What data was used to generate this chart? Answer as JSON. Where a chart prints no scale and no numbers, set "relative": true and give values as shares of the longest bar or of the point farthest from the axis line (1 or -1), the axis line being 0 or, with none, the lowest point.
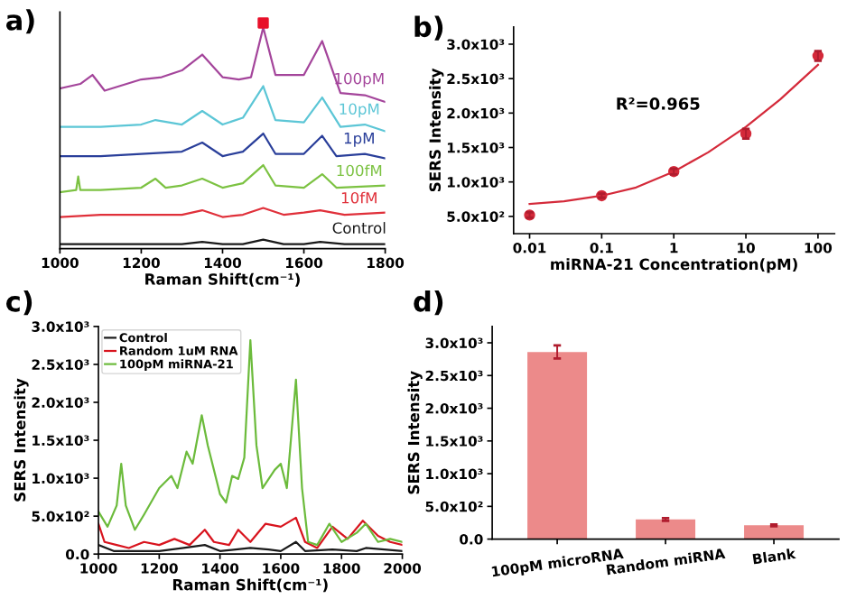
{
  "chart_data": [
    {
      "type": "line",
      "title": "a)",
      "xlabel": "Raman Shift(cm⁻¹)",
      "relative": true,
      "legend": false,
      "tick_labels": "x",
      "xlim": [
        1000,
        1800
      ],
      "xticks": [
        1000,
        1200,
        1400,
        1600,
        1800
      ],
      "series": [
        {
          "name": "Control",
          "color": "#1a1a1a",
          "x": [
            1000,
            1100,
            1200,
            1300,
            1350,
            1400,
            1450,
            1500,
            1550,
            1600,
            1640,
            1700,
            1800
          ],
          "values": [
            0.02,
            0.02,
            0.02,
            0.02,
            0.03,
            0.02,
            0.02,
            0.04,
            0.02,
            0.02,
            0.03,
            0.02,
            0.02
          ]
        },
        {
          "name": "10fM",
          "color": "#e0303a",
          "x": [
            1000,
            1100,
            1200,
            1300,
            1350,
            1400,
            1450,
            1500,
            1550,
            1600,
            1640,
            1700,
            1800
          ],
          "values": [
            0.14,
            0.15,
            0.15,
            0.15,
            0.17,
            0.14,
            0.15,
            0.18,
            0.15,
            0.16,
            0.17,
            0.15,
            0.16
          ]
        },
        {
          "name": "100fM",
          "color": "#7cc242",
          "x": [
            1000,
            1040,
            1045,
            1050,
            1100,
            1200,
            1235,
            1260,
            1300,
            1350,
            1400,
            1450,
            1500,
            1530,
            1600,
            1645,
            1680,
            1800
          ],
          "values": [
            0.25,
            0.26,
            0.32,
            0.26,
            0.26,
            0.27,
            0.31,
            0.27,
            0.28,
            0.31,
            0.27,
            0.29,
            0.37,
            0.28,
            0.27,
            0.33,
            0.27,
            0.28
          ]
        },
        {
          "name": "1pM",
          "color": "#2a3f9a",
          "x": [
            1000,
            1100,
            1200,
            1300,
            1350,
            1400,
            1450,
            1500,
            1530,
            1600,
            1645,
            1680,
            1750,
            1800
          ],
          "values": [
            0.41,
            0.41,
            0.42,
            0.43,
            0.47,
            0.41,
            0.43,
            0.51,
            0.42,
            0.42,
            0.5,
            0.41,
            0.42,
            0.4
          ]
        },
        {
          "name": "10pM",
          "color": "#5cc6d6",
          "x": [
            1000,
            1100,
            1200,
            1235,
            1300,
            1350,
            1400,
            1450,
            1500,
            1530,
            1600,
            1645,
            1690,
            1750,
            1800
          ],
          "values": [
            0.54,
            0.54,
            0.55,
            0.57,
            0.55,
            0.61,
            0.55,
            0.58,
            0.72,
            0.57,
            0.56,
            0.67,
            0.54,
            0.55,
            0.52
          ]
        },
        {
          "name": "100pM",
          "color": "#a4459b",
          "x": [
            1000,
            1050,
            1080,
            1110,
            1200,
            1250,
            1300,
            1350,
            1400,
            1440,
            1470,
            1500,
            1530,
            1600,
            1645,
            1690,
            1750,
            1800
          ],
          "values": [
            0.71,
            0.73,
            0.77,
            0.7,
            0.75,
            0.76,
            0.79,
            0.86,
            0.76,
            0.75,
            0.76,
            0.98,
            0.77,
            0.77,
            0.92,
            0.69,
            0.68,
            0.65
          ]
        },
        {
          "type": "scatter",
          "marker": "square",
          "color": "#e8102a",
          "x": [
            1500
          ],
          "values": [
            1.0
          ]
        }
      ]
    },
    {
      "type": "scatter",
      "title": "b)",
      "xlabel": "miRNA-21 Concentration(pM)",
      "ylabel": "SERS Intensity",
      "log": "x",
      "legend": false,
      "xlim": [
        0.006,
        170
      ],
      "xticks": [
        0.01,
        0.1,
        1,
        10,
        100
      ],
      "ylim": [
        250,
        3250
      ],
      "yticks": [
        {
          "value": 500,
          "label": "5.0x10²"
        },
        {
          "value": 1000,
          "label": "1.0x10³"
        },
        {
          "value": 1500,
          "label": "1.5x10³"
        },
        {
          "value": 2000,
          "label": "2.0x10³"
        },
        {
          "value": 2500,
          "label": "2.5x10³"
        },
        {
          "value": 3000,
          "label": "3.0x10³"
        }
      ],
      "annotations": [
        "R²=0.965"
      ],
      "series": [
        {
          "color": "#d42a3a",
          "marker": "circle",
          "x": [
            0.01,
            0.1,
            1,
            10,
            100
          ],
          "values": [
            520,
            800,
            1150,
            1700,
            2830
          ],
          "errors": [
            40,
            30,
            40,
            70,
            70
          ]
        },
        {
          "type": "line",
          "color": "#d42a3a",
          "x": [
            0.01,
            0.03,
            0.1,
            0.3,
            1,
            3,
            10,
            30,
            100
          ],
          "values": [
            680,
            720,
            800,
            920,
            1150,
            1430,
            1800,
            2200,
            2700
          ]
        }
      ]
    },
    {
      "type": "line",
      "title": "c)",
      "xlabel": "Raman Shift(cm⁻¹)",
      "ylabel": "SERS Intensity",
      "legend": "top left",
      "xlim": [
        1000,
        2000
      ],
      "xticks": [
        1000,
        1200,
        1400,
        1600,
        1800,
        2000
      ],
      "ylim": [
        0,
        3000
      ],
      "yticks": [
        {
          "value": 0,
          "label": "0.0"
        },
        {
          "value": 500,
          "label": "5.0x10²"
        },
        {
          "value": 1000,
          "label": "1.0x10³"
        },
        {
          "value": 1500,
          "label": "1.5x10³"
        },
        {
          "value": 2000,
          "label": "2.0x10³"
        },
        {
          "value": 2500,
          "label": "2.5x10³"
        },
        {
          "value": 3000,
          "label": "3.0x10³"
        }
      ],
      "series": [
        {
          "name": "Control",
          "color": "#1a1a1a",
          "x": [
            1000,
            1050,
            1100,
            1200,
            1280,
            1350,
            1400,
            1500,
            1560,
            1600,
            1650,
            1680,
            1770,
            1850,
            1880,
            2000
          ],
          "values": [
            120,
            40,
            40,
            40,
            80,
            120,
            40,
            80,
            60,
            40,
            160,
            40,
            60,
            40,
            80,
            40
          ]
        },
        {
          "name": "Random 1uM RNA",
          "color": "#d8141e",
          "x": [
            1000,
            1020,
            1060,
            1100,
            1150,
            1200,
            1250,
            1300,
            1350,
            1380,
            1430,
            1460,
            1500,
            1550,
            1600,
            1650,
            1680,
            1720,
            1770,
            1820,
            1870,
            1920,
            1960,
            2000
          ],
          "values": [
            400,
            160,
            120,
            80,
            160,
            120,
            200,
            120,
            320,
            160,
            120,
            320,
            160,
            400,
            360,
            480,
            160,
            80,
            360,
            200,
            440,
            240,
            160,
            120
          ]
        },
        {
          "name": "100pM miRNA-21",
          "color": "#6cbb3c",
          "x": [
            1000,
            1030,
            1060,
            1075,
            1090,
            1120,
            1150,
            1200,
            1240,
            1260,
            1290,
            1310,
            1340,
            1360,
            1400,
            1420,
            1440,
            1460,
            1480,
            1500,
            1520,
            1540,
            1580,
            1600,
            1620,
            1650,
            1670,
            1690,
            1720,
            1760,
            1800,
            1850,
            1880,
            1920,
            1960,
            2000
          ],
          "values": [
            560,
            360,
            640,
            1190,
            640,
            320,
            520,
            870,
            1030,
            870,
            1350,
            1190,
            1830,
            1430,
            790,
            680,
            1030,
            990,
            1270,
            2820,
            1430,
            870,
            1110,
            1190,
            870,
            2300,
            870,
            160,
            120,
            400,
            160,
            280,
            400,
            160,
            200,
            160
          ]
        }
      ]
    },
    {
      "type": "bar",
      "title": "d)",
      "ylabel": "SERS Intensity",
      "categories": [
        "100pM microRNA",
        "Random miRNA",
        "Blank"
      ],
      "ylim": [
        0,
        3250
      ],
      "yticks": [
        {
          "value": 0,
          "label": "0.0"
        },
        {
          "value": 500,
          "label": "5.0x10²"
        },
        {
          "value": 1000,
          "label": "1.0x10³"
        },
        {
          "value": 1500,
          "label": "1.5x10³"
        },
        {
          "value": 2000,
          "label": "2.0x10³"
        },
        {
          "value": 2500,
          "label": "2.5x10³"
        },
        {
          "value": 3000,
          "label": "3.0x10³"
        }
      ],
      "series": [
        {
          "color": "#ec8a8a",
          "values": [
            2860,
            300,
            210
          ],
          "errors": [
            100,
            20,
            15
          ]
        }
      ]
    }
  ]
}
